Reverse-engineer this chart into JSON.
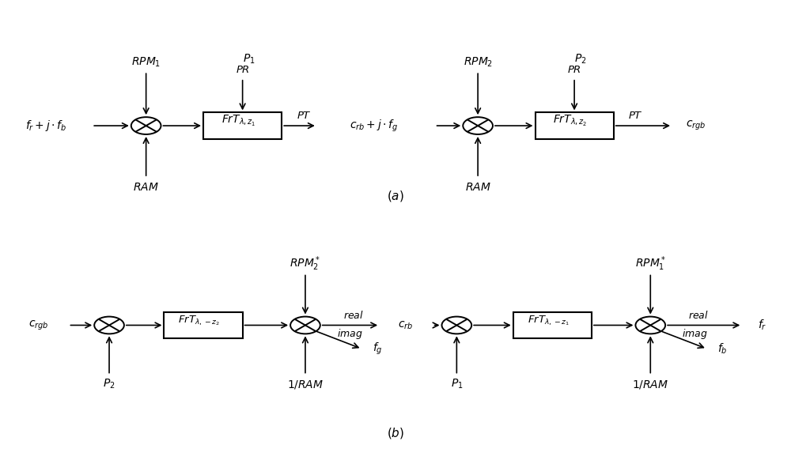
{
  "fig_width": 10.0,
  "fig_height": 5.82,
  "bg_color": "#ffffff",
  "text_color": "#000000",
  "line_color": "#000000"
}
